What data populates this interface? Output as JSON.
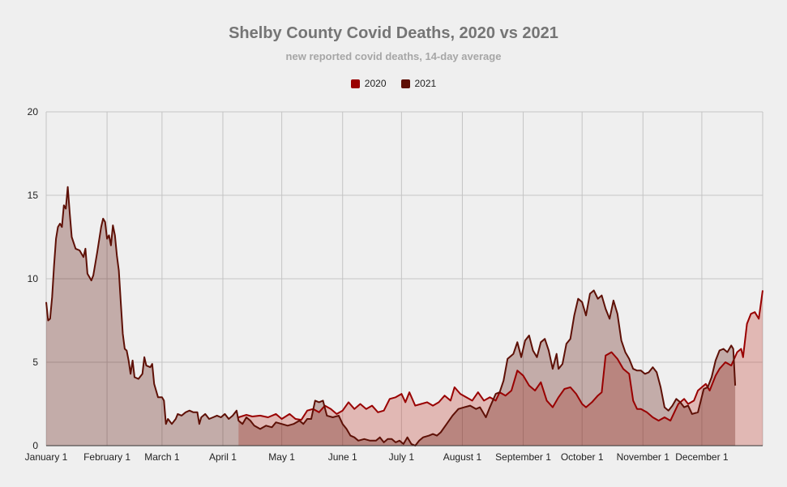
{
  "chart_data": {
    "type": "area",
    "title": "Shelby County Covid Deaths, 2020 vs 2021",
    "subtitle": "new reported covid deaths, 14-day average",
    "xlabel": "",
    "ylabel": "",
    "ylim": [
      0,
      20
    ],
    "yticks": [
      0,
      5,
      10,
      15,
      20
    ],
    "xlim": [
      1,
      366
    ],
    "xticks": [
      {
        "label": "January 1",
        "day": 1
      },
      {
        "label": "February 1",
        "day": 32
      },
      {
        "label": "March 1",
        "day": 60
      },
      {
        "label": "April 1",
        "day": 91
      },
      {
        "label": "May 1",
        "day": 121
      },
      {
        "label": "June 1",
        "day": 152
      },
      {
        "label": "July 1",
        "day": 182
      },
      {
        "label": "August 1",
        "day": 213
      },
      {
        "label": "September 1",
        "day": 244
      },
      {
        "label": "October 1",
        "day": 274
      },
      {
        "label": "November 1",
        "day": 305
      },
      {
        "label": "December 1",
        "day": 335
      }
    ],
    "grid": true,
    "legend_position": "top-center",
    "series": [
      {
        "name": "2020",
        "color": "#990000",
        "fill": "#d8a1a1",
        "points": [
          [
            99,
            1.7
          ],
          [
            103,
            1.85
          ],
          [
            106,
            1.75
          ],
          [
            110,
            1.8
          ],
          [
            114,
            1.7
          ],
          [
            118,
            1.9
          ],
          [
            121,
            1.6
          ],
          [
            125,
            1.9
          ],
          [
            128,
            1.6
          ],
          [
            131,
            1.55
          ],
          [
            134,
            2.1
          ],
          [
            137,
            2.2
          ],
          [
            140,
            2.0
          ],
          [
            143,
            2.4
          ],
          [
            146,
            2.2
          ],
          [
            149,
            1.9
          ],
          [
            152,
            2.1
          ],
          [
            155,
            2.6
          ],
          [
            158,
            2.2
          ],
          [
            161,
            2.5
          ],
          [
            164,
            2.2
          ],
          [
            167,
            2.4
          ],
          [
            170,
            2.0
          ],
          [
            173,
            2.1
          ],
          [
            176,
            2.8
          ],
          [
            179,
            2.9
          ],
          [
            182,
            3.1
          ],
          [
            184,
            2.6
          ],
          [
            186,
            3.2
          ],
          [
            189,
            2.4
          ],
          [
            192,
            2.5
          ],
          [
            195,
            2.6
          ],
          [
            198,
            2.4
          ],
          [
            201,
            2.6
          ],
          [
            204,
            3.0
          ],
          [
            207,
            2.7
          ],
          [
            209,
            3.5
          ],
          [
            212,
            3.1
          ],
          [
            215,
            2.9
          ],
          [
            218,
            2.7
          ],
          [
            221,
            3.2
          ],
          [
            224,
            2.7
          ],
          [
            227,
            2.9
          ],
          [
            230,
            2.7
          ],
          [
            232,
            3.2
          ],
          [
            235,
            3.0
          ],
          [
            238,
            3.3
          ],
          [
            241,
            4.5
          ],
          [
            244,
            4.2
          ],
          [
            247,
            3.6
          ],
          [
            250,
            3.3
          ],
          [
            253,
            3.8
          ],
          [
            256,
            2.7
          ],
          [
            259,
            2.3
          ],
          [
            262,
            2.9
          ],
          [
            265,
            3.4
          ],
          [
            268,
            3.5
          ],
          [
            271,
            3.1
          ],
          [
            274,
            2.5
          ],
          [
            276,
            2.3
          ],
          [
            279,
            2.6
          ],
          [
            282,
            3.0
          ],
          [
            284,
            3.2
          ],
          [
            286,
            5.4
          ],
          [
            289,
            5.6
          ],
          [
            292,
            5.2
          ],
          [
            295,
            4.6
          ],
          [
            298,
            4.3
          ],
          [
            300,
            2.7
          ],
          [
            302,
            2.2
          ],
          [
            304,
            2.2
          ],
          [
            307,
            2.0
          ],
          [
            310,
            1.7
          ],
          [
            313,
            1.5
          ],
          [
            316,
            1.7
          ],
          [
            319,
            1.5
          ],
          [
            321,
            2.0
          ],
          [
            323,
            2.5
          ],
          [
            326,
            2.8
          ],
          [
            328,
            2.5
          ],
          [
            331,
            2.7
          ],
          [
            333,
            3.3
          ],
          [
            335,
            3.5
          ],
          [
            337,
            3.7
          ],
          [
            339,
            3.3
          ],
          [
            342,
            4.2
          ],
          [
            344,
            4.6
          ],
          [
            347,
            5.0
          ],
          [
            350,
            4.8
          ],
          [
            353,
            5.6
          ],
          [
            355,
            5.8
          ],
          [
            356,
            5.3
          ],
          [
            358,
            7.3
          ],
          [
            360,
            7.9
          ],
          [
            362,
            8.0
          ],
          [
            364,
            7.6
          ],
          [
            366,
            9.3
          ]
        ]
      },
      {
        "name": "2021",
        "color": "#5e1006",
        "fill": "#c4aca6",
        "points": [
          [
            1,
            8.6
          ],
          [
            2,
            7.5
          ],
          [
            3,
            7.6
          ],
          [
            4,
            8.9
          ],
          [
            5,
            10.8
          ],
          [
            6,
            12.4
          ],
          [
            7,
            13.1
          ],
          [
            8,
            13.3
          ],
          [
            9,
            13.1
          ],
          [
            10,
            14.4
          ],
          [
            11,
            14.2
          ],
          [
            12,
            15.5
          ],
          [
            13,
            13.9
          ],
          [
            14,
            12.5
          ],
          [
            16,
            11.8
          ],
          [
            18,
            11.7
          ],
          [
            20,
            11.3
          ],
          [
            21,
            11.8
          ],
          [
            22,
            10.3
          ],
          [
            23,
            10.1
          ],
          [
            24,
            9.9
          ],
          [
            25,
            10.2
          ],
          [
            27,
            11.6
          ],
          [
            29,
            13.1
          ],
          [
            30,
            13.6
          ],
          [
            31,
            13.4
          ],
          [
            32,
            12.4
          ],
          [
            33,
            12.6
          ],
          [
            34,
            12.0
          ],
          [
            35,
            13.2
          ],
          [
            36,
            12.6
          ],
          [
            37,
            11.4
          ],
          [
            38,
            10.5
          ],
          [
            39,
            8.6
          ],
          [
            40,
            6.7
          ],
          [
            41,
            5.8
          ],
          [
            42,
            5.7
          ],
          [
            43,
            5.1
          ],
          [
            44,
            4.3
          ],
          [
            45,
            5.1
          ],
          [
            46,
            4.1
          ],
          [
            48,
            4.0
          ],
          [
            50,
            4.3
          ],
          [
            51,
            5.3
          ],
          [
            52,
            4.8
          ],
          [
            54,
            4.7
          ],
          [
            55,
            4.9
          ],
          [
            56,
            3.7
          ],
          [
            57,
            3.3
          ],
          [
            58,
            2.9
          ],
          [
            60,
            2.9
          ],
          [
            61,
            2.7
          ],
          [
            62,
            1.3
          ],
          [
            63,
            1.6
          ],
          [
            65,
            1.3
          ],
          [
            67,
            1.6
          ],
          [
            68,
            1.9
          ],
          [
            70,
            1.8
          ],
          [
            72,
            2.0
          ],
          [
            74,
            2.1
          ],
          [
            76,
            2.0
          ],
          [
            78,
            2.0
          ],
          [
            79,
            1.3
          ],
          [
            80,
            1.7
          ],
          [
            82,
            1.9
          ],
          [
            84,
            1.6
          ],
          [
            86,
            1.7
          ],
          [
            88,
            1.8
          ],
          [
            90,
            1.7
          ],
          [
            92,
            1.9
          ],
          [
            94,
            1.6
          ],
          [
            96,
            1.8
          ],
          [
            98,
            2.1
          ],
          [
            99,
            1.5
          ],
          [
            101,
            1.3
          ],
          [
            103,
            1.7
          ],
          [
            105,
            1.5
          ],
          [
            107,
            1.2
          ],
          [
            110,
            1.0
          ],
          [
            113,
            1.2
          ],
          [
            116,
            1.1
          ],
          [
            118,
            1.4
          ],
          [
            121,
            1.3
          ],
          [
            124,
            1.2
          ],
          [
            127,
            1.3
          ],
          [
            130,
            1.5
          ],
          [
            132,
            1.3
          ],
          [
            134,
            1.6
          ],
          [
            136,
            1.6
          ],
          [
            138,
            2.7
          ],
          [
            140,
            2.6
          ],
          [
            142,
            2.7
          ],
          [
            144,
            1.8
          ],
          [
            147,
            1.7
          ],
          [
            150,
            1.8
          ],
          [
            152,
            1.3
          ],
          [
            154,
            1.0
          ],
          [
            156,
            0.6
          ],
          [
            158,
            0.5
          ],
          [
            160,
            0.3
          ],
          [
            163,
            0.4
          ],
          [
            166,
            0.3
          ],
          [
            169,
            0.3
          ],
          [
            171,
            0.5
          ],
          [
            173,
            0.2
          ],
          [
            175,
            0.4
          ],
          [
            177,
            0.4
          ],
          [
            179,
            0.2
          ],
          [
            181,
            0.3
          ],
          [
            183,
            0.1
          ],
          [
            185,
            0.5
          ],
          [
            187,
            0.1
          ],
          [
            189,
            0.0
          ],
          [
            191,
            0.3
          ],
          [
            193,
            0.5
          ],
          [
            196,
            0.6
          ],
          [
            198,
            0.7
          ],
          [
            200,
            0.6
          ],
          [
            202,
            0.8
          ],
          [
            205,
            1.3
          ],
          [
            208,
            1.8
          ],
          [
            211,
            2.2
          ],
          [
            214,
            2.3
          ],
          [
            217,
            2.4
          ],
          [
            220,
            2.2
          ],
          [
            222,
            2.3
          ],
          [
            225,
            1.7
          ],
          [
            227,
            2.3
          ],
          [
            230,
            3.1
          ],
          [
            232,
            3.2
          ],
          [
            234,
            3.9
          ],
          [
            236,
            5.2
          ],
          [
            239,
            5.5
          ],
          [
            241,
            6.2
          ],
          [
            243,
            5.3
          ],
          [
            245,
            6.3
          ],
          [
            247,
            6.6
          ],
          [
            249,
            5.7
          ],
          [
            251,
            5.3
          ],
          [
            253,
            6.2
          ],
          [
            255,
            6.4
          ],
          [
            257,
            5.7
          ],
          [
            259,
            4.6
          ],
          [
            261,
            5.5
          ],
          [
            262,
            4.6
          ],
          [
            264,
            4.9
          ],
          [
            266,
            6.1
          ],
          [
            268,
            6.4
          ],
          [
            270,
            7.8
          ],
          [
            272,
            8.8
          ],
          [
            274,
            8.6
          ],
          [
            276,
            7.8
          ],
          [
            278,
            9.1
          ],
          [
            280,
            9.3
          ],
          [
            282,
            8.8
          ],
          [
            284,
            9.0
          ],
          [
            286,
            8.2
          ],
          [
            288,
            7.6
          ],
          [
            290,
            8.7
          ],
          [
            292,
            7.9
          ],
          [
            294,
            6.3
          ],
          [
            296,
            5.6
          ],
          [
            298,
            5.2
          ],
          [
            300,
            4.6
          ],
          [
            302,
            4.5
          ],
          [
            304,
            4.5
          ],
          [
            306,
            4.3
          ],
          [
            308,
            4.4
          ],
          [
            310,
            4.7
          ],
          [
            312,
            4.4
          ],
          [
            314,
            3.5
          ],
          [
            316,
            2.3
          ],
          [
            318,
            2.1
          ],
          [
            320,
            2.4
          ],
          [
            322,
            2.8
          ],
          [
            324,
            2.6
          ],
          [
            326,
            2.3
          ],
          [
            328,
            2.4
          ],
          [
            330,
            1.9
          ],
          [
            333,
            2.0
          ],
          [
            336,
            3.4
          ],
          [
            338,
            3.5
          ],
          [
            340,
            4.1
          ],
          [
            342,
            5.1
          ],
          [
            344,
            5.7
          ],
          [
            346,
            5.8
          ],
          [
            348,
            5.6
          ],
          [
            350,
            6.0
          ],
          [
            351,
            5.8
          ],
          [
            352,
            3.6
          ]
        ]
      }
    ]
  }
}
